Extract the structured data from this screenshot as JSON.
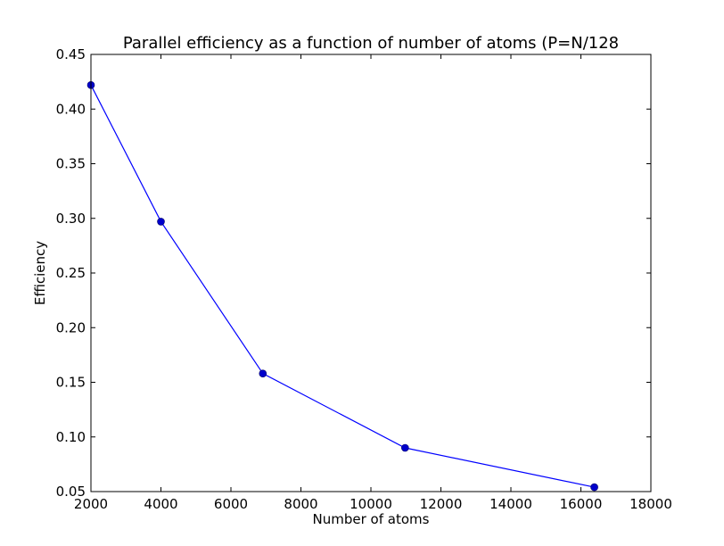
{
  "chart_data": {
    "type": "line",
    "title": "Parallel efficiency as a function of number of atoms (P=N/128",
    "xlabel": "Number of atoms",
    "ylabel": "Efficiency",
    "xlim": [
      2000,
      18000
    ],
    "ylim": [
      0.05,
      0.45
    ],
    "xticks": [
      2000,
      4000,
      6000,
      8000,
      10000,
      12000,
      14000,
      16000,
      18000
    ],
    "xtick_labels": [
      "2000",
      "4000",
      "6000",
      "8000",
      "10000",
      "12000",
      "14000",
      "16000",
      "18000"
    ],
    "yticks": [
      0.05,
      0.1,
      0.15,
      0.2,
      0.25,
      0.3,
      0.35,
      0.4,
      0.45
    ],
    "ytick_labels": [
      "0.05",
      "0.10",
      "0.15",
      "0.20",
      "0.25",
      "0.30",
      "0.35",
      "0.40",
      "0.45"
    ],
    "grid": false,
    "legend": false,
    "series": [
      {
        "x": [
          2000,
          4000,
          6912,
          10976,
          16384
        ],
        "y": [
          0.422,
          0.297,
          0.158,
          0.09,
          0.054
        ],
        "color": "#0000ff",
        "marker": "circle",
        "marker_color": "#0000cc"
      }
    ]
  }
}
